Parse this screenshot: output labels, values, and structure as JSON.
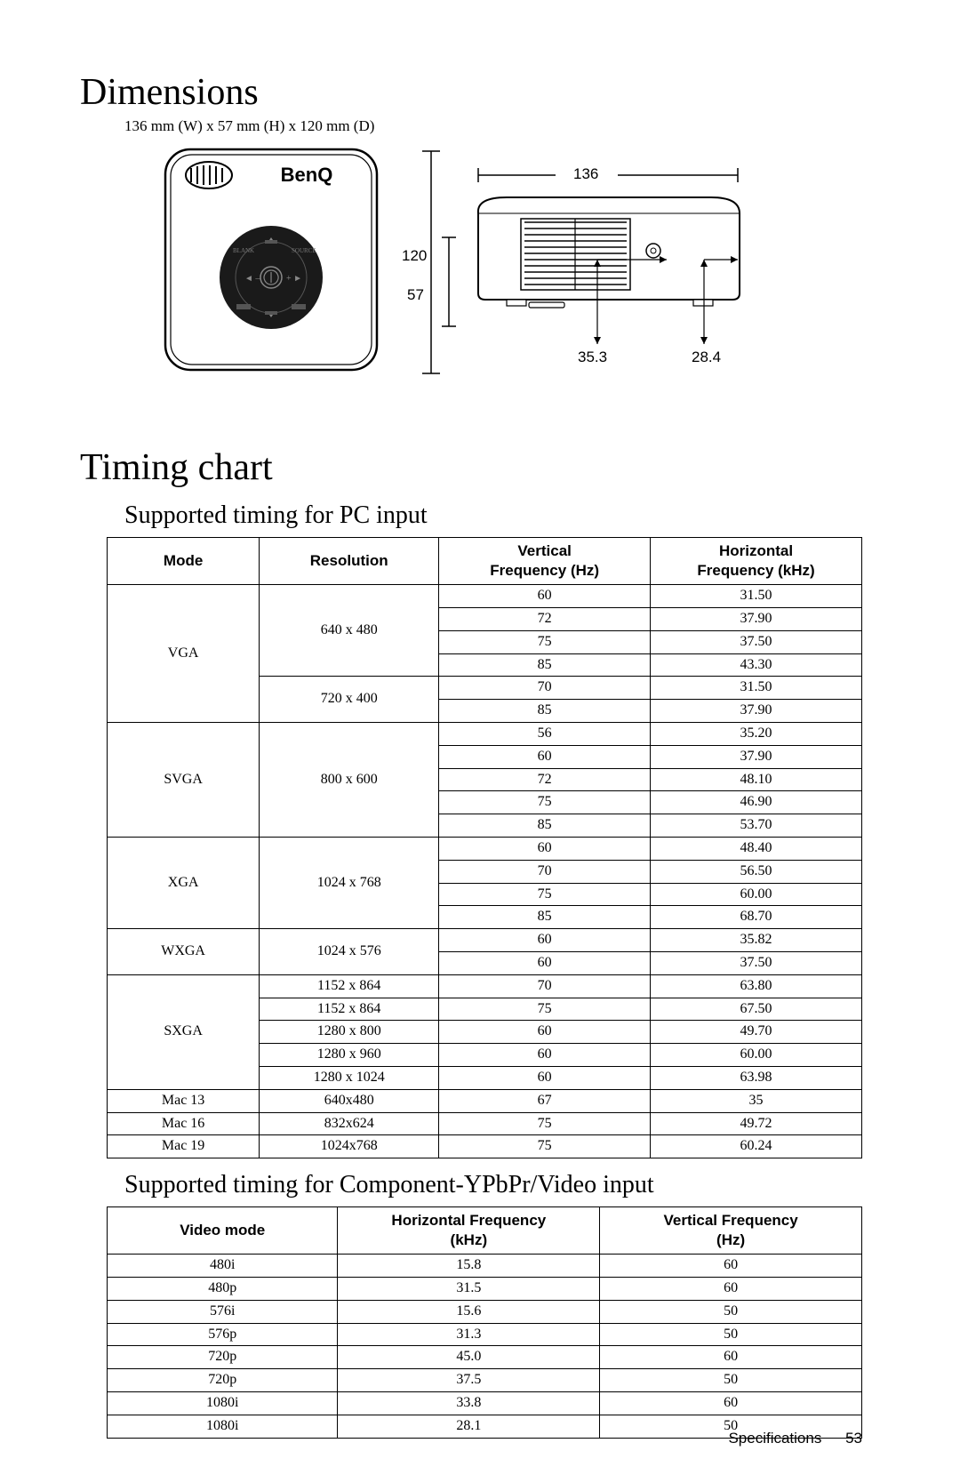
{
  "section1_title": "Dimensions",
  "dim_text": "136 mm (W) x 57 mm (H) x 120 mm (D)",
  "diagram": {
    "brand": "BenQ",
    "depth_label": "120",
    "height_label": "57",
    "width_label": "136",
    "bottom_left_label": "35.3",
    "bottom_right_label": "28.4"
  },
  "section2_title": "Timing chart",
  "subsection2a": "Supported timing for PC input",
  "pc_table": {
    "headers": [
      "Mode",
      "Resolution",
      "Vertical\nFrequency (Hz)",
      "Horizontal\nFrequency (kHz)"
    ],
    "groups": [
      {
        "mode": "VGA",
        "rows": [
          {
            "res": "640 x 480",
            "span": 4,
            "vals": [
              [
                "60",
                "31.50"
              ],
              [
                "72",
                "37.90"
              ],
              [
                "75",
                "37.50"
              ],
              [
                "85",
                "43.30"
              ]
            ]
          },
          {
            "res": "720 x 400",
            "span": 2,
            "vals": [
              [
                "70",
                "31.50"
              ],
              [
                "85",
                "37.90"
              ]
            ]
          }
        ]
      },
      {
        "mode": "SVGA",
        "rows": [
          {
            "res": "800 x 600",
            "span": 5,
            "vals": [
              [
                "56",
                "35.20"
              ],
              [
                "60",
                "37.90"
              ],
              [
                "72",
                "48.10"
              ],
              [
                "75",
                "46.90"
              ],
              [
                "85",
                "53.70"
              ]
            ]
          }
        ]
      },
      {
        "mode": "XGA",
        "rows": [
          {
            "res": "1024 x 768",
            "span": 4,
            "vals": [
              [
                "60",
                "48.40"
              ],
              [
                "70",
                "56.50"
              ],
              [
                "75",
                "60.00"
              ],
              [
                "85",
                "68.70"
              ]
            ]
          }
        ]
      },
      {
        "mode": "WXGA",
        "rows": [
          {
            "res": "1024 x 576",
            "span": 2,
            "vals": [
              [
                "60",
                "35.82"
              ],
              [
                "60",
                "37.50"
              ]
            ]
          }
        ]
      },
      {
        "mode": "SXGA",
        "rows": [
          {
            "res": "1152 x 864",
            "span": 1,
            "vals": [
              [
                "70",
                "63.80"
              ]
            ]
          },
          {
            "res": "1152 x 864",
            "span": 1,
            "vals": [
              [
                "75",
                "67.50"
              ]
            ]
          },
          {
            "res": "1280 x 800",
            "span": 1,
            "vals": [
              [
                "60",
                "49.70"
              ]
            ]
          },
          {
            "res": "1280 x 960",
            "span": 1,
            "vals": [
              [
                "60",
                "60.00"
              ]
            ]
          },
          {
            "res": "1280 x 1024",
            "span": 1,
            "vals": [
              [
                "60",
                "63.98"
              ]
            ]
          }
        ]
      },
      {
        "mode": "Mac 13",
        "rows": [
          {
            "res": "640x480",
            "span": 1,
            "vals": [
              [
                "67",
                "35"
              ]
            ]
          }
        ]
      },
      {
        "mode": "Mac 16",
        "rows": [
          {
            "res": "832x624",
            "span": 1,
            "vals": [
              [
                "75",
                "49.72"
              ]
            ]
          }
        ]
      },
      {
        "mode": "Mac 19",
        "rows": [
          {
            "res": "1024x768",
            "span": 1,
            "vals": [
              [
                "75",
                "60.24"
              ]
            ]
          }
        ]
      }
    ]
  },
  "subsection2b": "Supported timing for Component-YPbPr/Video input",
  "video_table": {
    "headers": [
      "Video mode",
      "Horizontal Frequency\n(kHz)",
      "Vertical Frequency\n(Hz)"
    ],
    "rows": [
      [
        "480i",
        "15.8",
        "60"
      ],
      [
        "480p",
        "31.5",
        "60"
      ],
      [
        "576i",
        "15.6",
        "50"
      ],
      [
        "576p",
        "31.3",
        "50"
      ],
      [
        "720p",
        "45.0",
        "60"
      ],
      [
        "720p",
        "37.5",
        "50"
      ],
      [
        "1080i",
        "33.8",
        "60"
      ],
      [
        "1080i",
        "28.1",
        "50"
      ]
    ]
  },
  "footer_label": "Specifications",
  "footer_page": "53",
  "colors": {
    "page_bg": "#ffffff",
    "outer_bg": "#7a7a7a",
    "border": "#000000",
    "text": "#000000"
  }
}
